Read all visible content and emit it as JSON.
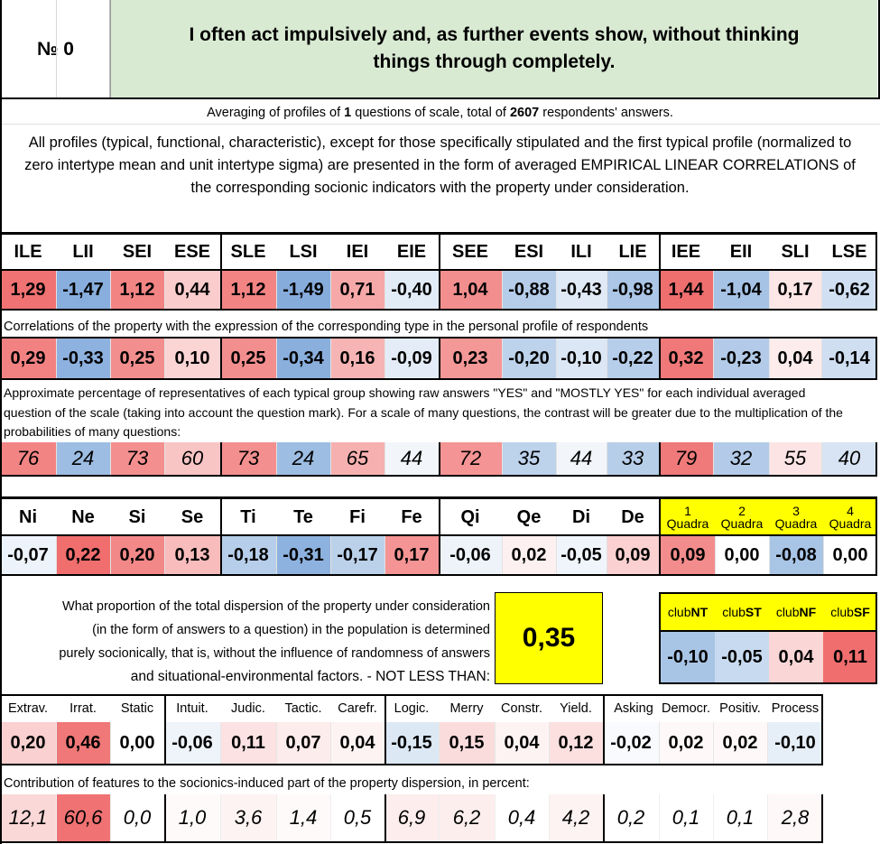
{
  "header": {
    "number_label": "№ 0",
    "question": "I often act impulsively and, as further events show, without thinking things through completely."
  },
  "averaging": {
    "prefix": "Averaging of profiles of ",
    "questions": "1",
    "middle": " questions of scale, total of ",
    "respondents": "2607",
    "suffix": " respondents' answers."
  },
  "intro": "All profiles (typical, functional, characteristic), except for those specifically stipulated and the first typical profile (normalized to zero intertype mean and unit intertype sigma) are presented in the form of averaged EMPIRICAL LINEAR CORRELATIONS of the corresponding socionic indicators with the property under consideration.",
  "types": {
    "labels": [
      "ILE",
      "LII",
      "SEI",
      "ESE",
      "SLE",
      "LSI",
      "IEI",
      "EIE",
      "SEE",
      "ESI",
      "ILI",
      "LIE",
      "IEE",
      "EII",
      "SLI",
      "LSE"
    ],
    "normalized": [
      "1,29",
      "-1,47",
      "1,12",
      "0,44",
      "1,12",
      "-1,49",
      "0,71",
      "-0,40",
      "1,04",
      "-0,88",
      "-0,43",
      "-0,98",
      "1,44",
      "-1,04",
      "0,17",
      "-0,62"
    ],
    "normalized_colors": [
      "#f07272",
      "#88aedd",
      "#f28484",
      "#fbcccc",
      "#f28484",
      "#86acdc",
      "#f6a8a8",
      "#e2ecf7",
      "#f38e8e",
      "#b5cde9",
      "#e0eaf6",
      "#abc6e6",
      "#ef6e6e",
      "#a6c3e5",
      "#fde6e6",
      "#d0dff1"
    ],
    "corr_caption": "Correlations of the property with the expression of the corresponding type in the personal profile of respondents",
    "corr": [
      "0,29",
      "-0,33",
      "0,25",
      "0,10",
      "0,25",
      "-0,34",
      "0,16",
      "-0,09",
      "0,23",
      "-0,20",
      "-0,10",
      "-0,22",
      "0,32",
      "-0,23",
      "0,04",
      "-0,14"
    ],
    "corr_colors": [
      "#f28282",
      "#8eb2df",
      "#f38e8e",
      "#fbd4d4",
      "#f38e8e",
      "#8aafdd",
      "#f7b4b4",
      "#e4edf7",
      "#f49797",
      "#bdd2eb",
      "#dce7f5",
      "#b6cee9",
      "#f07878",
      "#b3cbe8",
      "#fdecec",
      "#cfdef1"
    ],
    "pct_caption": "Approximate percentage of representatives of each typical group showing raw answers \"YES\" and \"MOSTLY YES\" for each individual averaged question of the scale (taking into account the question mark). For a scale of many questions, the contrast will be greater due to the multiplication of the probabilities of many questions:",
    "pct": [
      "76",
      "24",
      "73",
      "60",
      "73",
      "24",
      "65",
      "44",
      "72",
      "35",
      "44",
      "33",
      "79",
      "32",
      "55",
      "40"
    ],
    "pct_colors": [
      "#f28484",
      "#9dbde3",
      "#f48f8f",
      "#f9c4c4",
      "#f48f8f",
      "#9dbde3",
      "#f7b0b0",
      "#f2f6fb",
      "#f49494",
      "#bdd2eb",
      "#f2f6fb",
      "#b7cee9",
      "#f07a7a",
      "#b3cbe8",
      "#fde4e4",
      "#d8e4f3"
    ]
  },
  "functions": {
    "labels": [
      "Ni",
      "Ne",
      "Si",
      "Se",
      "Ti",
      "Te",
      "Fi",
      "Fe",
      "Qi",
      "Qe",
      "Di",
      "De"
    ],
    "values": [
      "-0,07",
      "0,22",
      "0,20",
      "0,13",
      "-0,18",
      "-0,31",
      "-0,17",
      "0,17",
      "-0,06",
      "0,02",
      "-0,05",
      "0,09"
    ],
    "colors": [
      "#edf3fa",
      "#f06e6e",
      "#f38888",
      "#f8bcbc",
      "#b6cee9",
      "#8eb2df",
      "#bbd1ea",
      "#f49494",
      "#eef3fa",
      "#fdf0f0",
      "#f0f5fb",
      "#fad0d0"
    ]
  },
  "quadras": {
    "nums": [
      "1",
      "2",
      "3",
      "4"
    ],
    "word": "Quadra",
    "values": [
      "0,09",
      "0,00",
      "-0,08",
      "0,00"
    ],
    "colors": [
      "#f38c8c",
      "#ffffff",
      "#a9c5e6",
      "#ffffff"
    ],
    "header_color": "#ffff00"
  },
  "dispersion": {
    "text_lines": [
      "What proportion of the total dispersion of the property under consideration",
      "(in the form of answers to a question) in the population is determined",
      "purely socionically, that is, without the influence of randomness of answers",
      "and situational-environmental factors. - NOT LESS THAN:"
    ],
    "value": "0,35",
    "box_color": "#ffff00"
  },
  "clubs": {
    "items": [
      {
        "prefix": "club",
        "bold": "NT"
      },
      {
        "prefix": "club",
        "bold": "ST"
      },
      {
        "prefix": "club",
        "bold": "NF"
      },
      {
        "prefix": "club",
        "bold": "SF"
      }
    ],
    "values": [
      "-0,10",
      "-0,05",
      "0,04",
      "0,11"
    ],
    "colors": [
      "#a9c5e6",
      "#c8daef",
      "#fbd6d6",
      "#f06e6e"
    ]
  },
  "traits": {
    "labels": [
      "Extrav.",
      "Irrat.",
      "Static",
      "Intuit.",
      "Judic.",
      "Tactic.",
      "Carefr.",
      "Logic.",
      "Merry",
      "Constr.",
      "Yield.",
      "Asking",
      "Democr.",
      "Positiv.",
      "Process"
    ],
    "values": [
      "0,20",
      "0,46",
      "0,00",
      "-0,06",
      "0,11",
      "0,07",
      "0,04",
      "-0,15",
      "0,15",
      "0,04",
      "0,12",
      "-0,02",
      "0,02",
      "0,02",
      "-0,10"
    ],
    "colors": [
      "#fad0d0",
      "#f07878",
      "#ffffff",
      "#eff4fa",
      "#fce2e2",
      "#fdecec",
      "#fef3f3",
      "#dde8f5",
      "#fbdcdc",
      "#fef3f3",
      "#fce0e0",
      "#f8fafd",
      "#fef8f8",
      "#fef8f8",
      "#e6eef8"
    ],
    "contrib_caption": "Contribution of features to the socionics-induced part of the property dispersion, in percent:",
    "contrib": [
      "12,1",
      "60,6",
      "0,0",
      "1,0",
      "3,6",
      "1,4",
      "0,5",
      "6,9",
      "6,2",
      "0,4",
      "4,2",
      "0,2",
      "0,1",
      "0,1",
      "2,8"
    ],
    "contrib_colors": [
      "#fbd8d8",
      "#f07272",
      "#ffffff",
      "#fffafa",
      "#fef3f3",
      "#fffafa",
      "#ffffff",
      "#fdeded",
      "#fdeeee",
      "#ffffff",
      "#fef3f3",
      "#ffffff",
      "#ffffff",
      "#ffffff",
      "#fef8f8"
    ]
  }
}
